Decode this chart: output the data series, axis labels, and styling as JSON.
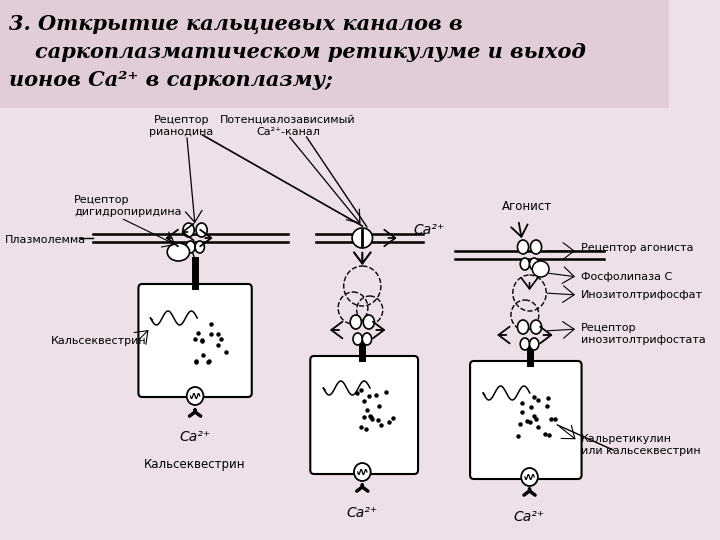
{
  "bg_color": "#ede0e8",
  "title_bg_color": "#e0cdd8",
  "fig_width": 7.2,
  "fig_height": 5.4,
  "title_line1": "3. Открытие кальциевых каналов в",
  "title_line2": "саркоплазматическом ретикулуме и выход",
  "title_line3": "ионов Ca²⁺ в саркоплазму;",
  "label_ryanodin": "Рецептор\nрианодина",
  "label_potencial": "Потенциалозависимый\nCa²⁺-канал",
  "label_dihidro": "Рецептор\nдигидропиридина",
  "label_plazmo": "Плазмолемма",
  "label_kalsekv1": "Кальсеквестрин",
  "label_kalsekv2": "Кальсеквестрин",
  "label_agonist": "Агонист",
  "label_recep_agon": "Рецептор агониста",
  "label_fosfolip": "Фосфолипаза C",
  "label_inozitol": "Инозитолтрифосфат",
  "label_recep_ino": "Рецептор\nинозитолтрифостата",
  "label_kalretic": "Кальретикулин\nили кальсеквестрин",
  "label_ca2": "Ca²⁺"
}
